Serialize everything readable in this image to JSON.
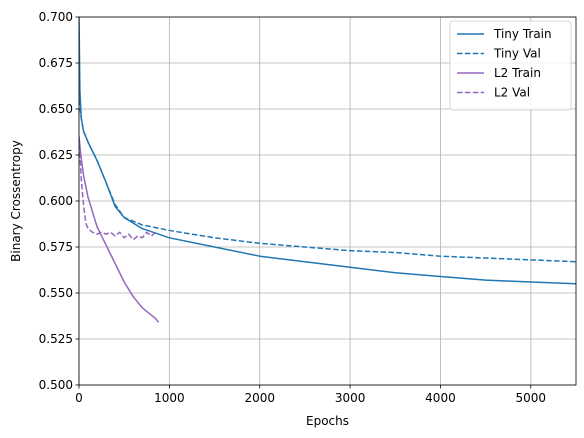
{
  "chart_data": {
    "type": "line",
    "xlabel": "Epochs",
    "ylabel": "Binary Crossentropy",
    "xlim": [
      0,
      5500
    ],
    "ylim": [
      0.5,
      0.7
    ],
    "grid": true,
    "legend_position": "top-right",
    "xticks": [
      0,
      1000,
      2000,
      3000,
      4000,
      5000
    ],
    "yticks": [
      0.5,
      0.525,
      0.55,
      0.575,
      0.6,
      0.625,
      0.65,
      0.675,
      0.7
    ],
    "xtick_labels": [
      "0",
      "1000",
      "2000",
      "3000",
      "4000",
      "5000"
    ],
    "ytick_labels": [
      "0.500",
      "0.525",
      "0.550",
      "0.575",
      "0.600",
      "0.625",
      "0.650",
      "0.675",
      "0.700"
    ],
    "series": [
      {
        "name": "Tiny Train",
        "color": "#1f77b4",
        "style": "solid",
        "x": [
          0,
          10,
          25,
          50,
          100,
          200,
          300,
          400,
          500,
          700,
          1000,
          1500,
          2000,
          2500,
          3000,
          3500,
          4000,
          4500,
          5000,
          5500
        ],
        "y": [
          0.7,
          0.66,
          0.645,
          0.638,
          0.632,
          0.622,
          0.61,
          0.597,
          0.591,
          0.585,
          0.58,
          0.575,
          0.57,
          0.567,
          0.564,
          0.561,
          0.559,
          0.557,
          0.556,
          0.555
        ]
      },
      {
        "name": "Tiny Val",
        "color": "#1f77b4",
        "style": "dashed",
        "x": [
          0,
          25,
          50,
          100,
          200,
          300,
          400,
          500,
          700,
          1000,
          1500,
          2000,
          2500,
          3000,
          3500,
          4000,
          4500,
          5000,
          5500
        ],
        "y": [
          0.655,
          0.645,
          0.638,
          0.632,
          0.622,
          0.61,
          0.598,
          0.591,
          0.587,
          0.584,
          0.58,
          0.577,
          0.575,
          0.573,
          0.572,
          0.57,
          0.569,
          0.568,
          0.567
        ]
      },
      {
        "name": "L2 Train",
        "color": "#9467bd",
        "style": "solid",
        "x": [
          0,
          20,
          50,
          100,
          150,
          200,
          250,
          300,
          350,
          400,
          450,
          500,
          550,
          600,
          650,
          700,
          750,
          800,
          850,
          880
        ],
        "y": [
          0.635,
          0.625,
          0.614,
          0.602,
          0.594,
          0.586,
          0.581,
          0.576,
          0.571,
          0.566,
          0.561,
          0.556,
          0.552,
          0.548,
          0.545,
          0.542,
          0.54,
          0.538,
          0.536,
          0.534
        ]
      },
      {
        "name": "L2 Val",
        "color": "#9467bd",
        "style": "dashed",
        "x": [
          0,
          25,
          50,
          75,
          100,
          150,
          200,
          250,
          300,
          350,
          400,
          450,
          500,
          550,
          600,
          650,
          700,
          750,
          800,
          850
        ],
        "y": [
          0.635,
          0.612,
          0.598,
          0.588,
          0.585,
          0.583,
          0.582,
          0.583,
          0.582,
          0.583,
          0.581,
          0.583,
          0.58,
          0.582,
          0.579,
          0.581,
          0.58,
          0.583,
          0.581,
          0.583
        ]
      }
    ]
  }
}
